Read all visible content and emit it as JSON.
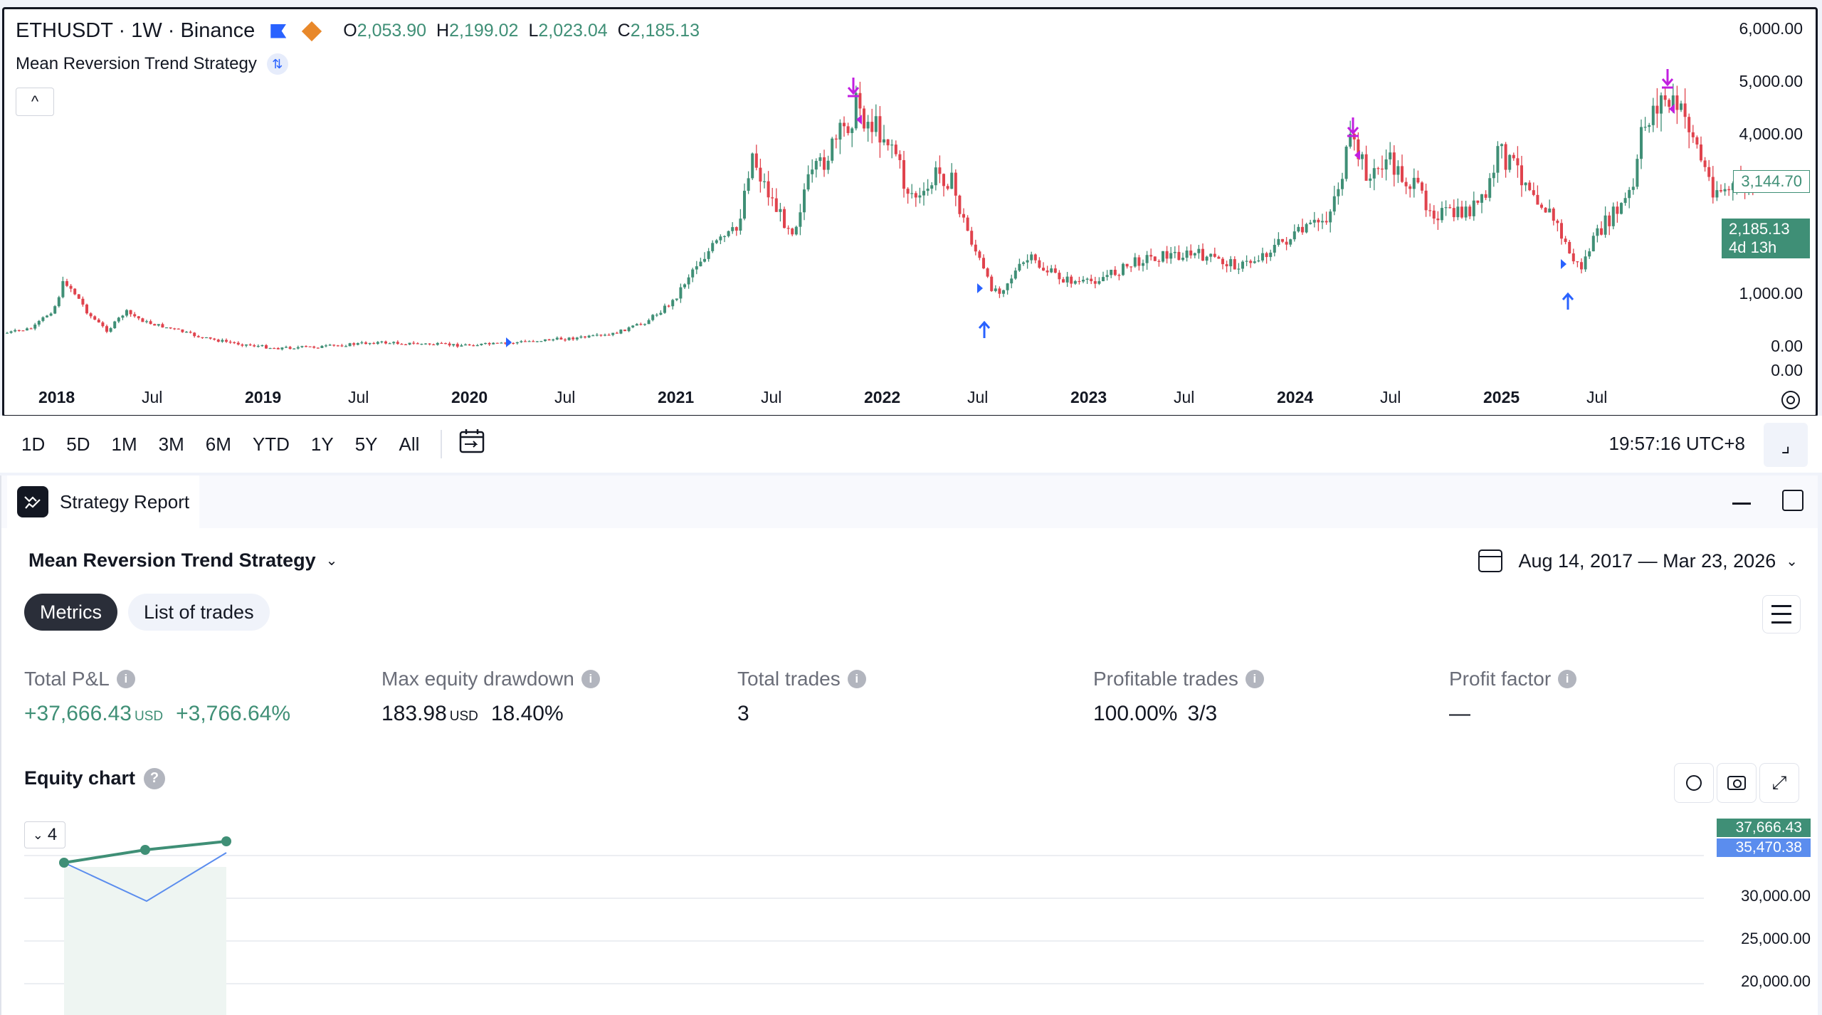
{
  "chart": {
    "symbol": "ETHUSDT · 1W · Binance",
    "ohlc": {
      "o_label": "O",
      "o": "2,053.90",
      "h_label": "H",
      "h": "2,199.02",
      "l_label": "L",
      "l": "2,023.04",
      "c_label": "C",
      "c": "2,185.13"
    },
    "strategy_name": "Mean Reversion Trend Strategy",
    "collapse_icon": "chevron-up-icon",
    "price_axis": [
      "6,000.00",
      "5,000.00",
      "4,000.00",
      "1,000.00",
      "0.00",
      "0.00"
    ],
    "last_price_tag": "3,144.70",
    "current_price": "2,185.13",
    "countdown": "4d 13h",
    "time_axis": [
      {
        "label": "2018",
        "bold": true
      },
      {
        "label": "Jul",
        "bold": false
      },
      {
        "label": "2019",
        "bold": true
      },
      {
        "label": "Jul",
        "bold": false
      },
      {
        "label": "2020",
        "bold": true
      },
      {
        "label": "Jul",
        "bold": false
      },
      {
        "label": "2021",
        "bold": true
      },
      {
        "label": "Jul",
        "bold": false
      },
      {
        "label": "2022",
        "bold": true
      },
      {
        "label": "Jul",
        "bold": false
      },
      {
        "label": "2023",
        "bold": true
      },
      {
        "label": "Jul",
        "bold": false
      },
      {
        "label": "2024",
        "bold": true
      },
      {
        "label": "Jul",
        "bold": false
      },
      {
        "label": "2025",
        "bold": true
      },
      {
        "label": "Jul",
        "bold": false
      }
    ],
    "colors": {
      "up": "#3f8f76",
      "down": "#e0434d",
      "buy": "#2962ff",
      "sell": "#c21ee0"
    }
  },
  "range_bar": {
    "buttons": [
      "1D",
      "5D",
      "1M",
      "3M",
      "6M",
      "YTD",
      "1Y",
      "5Y",
      "All"
    ],
    "time": "19:57:16 UTC+8"
  },
  "report": {
    "tab_label": "Strategy Report",
    "strategy_select": "Mean Reversion Trend Strategy",
    "date_range": "Aug 14, 2017 — Mar 23, 2026",
    "tabs": {
      "metrics": "Metrics",
      "trades": "List of trades"
    },
    "metrics": [
      {
        "label": "Total P&L",
        "value": "+37,666.43",
        "unit": "USD",
        "extra": "+3,766.64%",
        "green": true
      },
      {
        "label": "Max equity drawdown",
        "value": "183.98",
        "unit": "USD",
        "extra": "18.40%",
        "green": false
      },
      {
        "label": "Total trades",
        "value": "3",
        "unit": "",
        "extra": "",
        "green": false
      },
      {
        "label": "Profitable trades",
        "value": "100.00%",
        "unit": "",
        "extra": "3/3",
        "green": false
      },
      {
        "label": "Profit factor",
        "value": "—",
        "unit": "",
        "extra": "",
        "green": false
      }
    ],
    "equity_title": "Equity chart",
    "equity_count": "4",
    "equity_tag_green": "37,666.43",
    "equity_tag_blue": "35,470.38",
    "equity_axis": [
      "30,000.00",
      "25,000.00",
      "20,000.00"
    ]
  }
}
